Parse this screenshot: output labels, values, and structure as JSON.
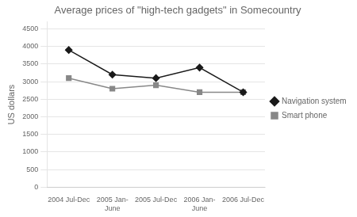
{
  "chart_data": {
    "type": "line",
    "title": "Average prices of \"high-tech gadgets\" in Somecountry",
    "ylabel": "US dollars",
    "categories": [
      "2004 Jul-Dec",
      "2005 Jan-\nJune",
      "2005 Jul-Dec",
      "2006 Jan-\nJune",
      "2006 Jul-Dec"
    ],
    "series": [
      {
        "name": "Navigation system",
        "color": "#1a1a1a",
        "marker": "diamond",
        "line_style": "solid",
        "values": [
          3900,
          3200,
          3100,
          3400,
          2700
        ]
      },
      {
        "name": "Smart phone",
        "color": "#888888",
        "marker": "square",
        "line_style": "solid",
        "values": [
          3100,
          2800,
          2900,
          2700,
          2700
        ]
      }
    ],
    "ylim": [
      0,
      4700
    ],
    "yticks": [
      0,
      500,
      1000,
      1500,
      2000,
      2500,
      3000,
      3500,
      4000,
      4500
    ],
    "grid": true,
    "legend": "right"
  }
}
